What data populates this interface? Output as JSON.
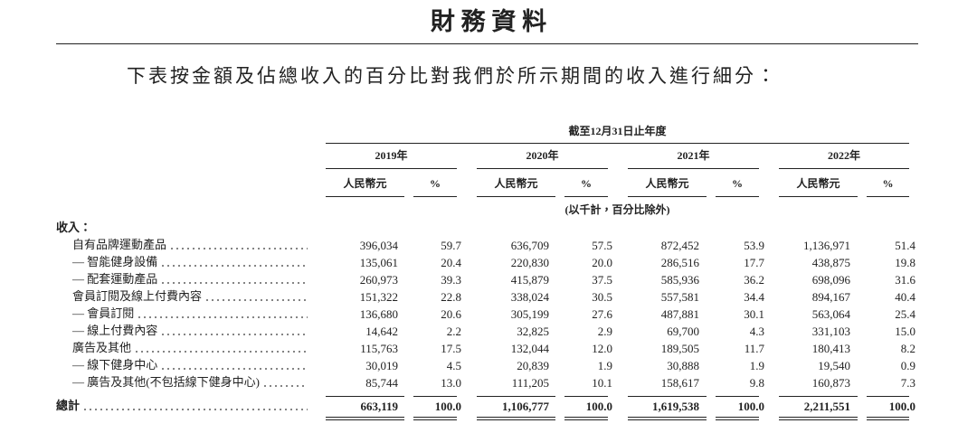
{
  "header": {
    "title": "財 務 資 料",
    "subtitle": "下表按金額及佔總收入的百分比對我們於所示期間的收入進行細分："
  },
  "table": {
    "period": "截至12月31日止年度",
    "years": [
      "2019年",
      "2020年",
      "2021年",
      "2022年"
    ],
    "subheaders": [
      "人民幣元",
      "%"
    ],
    "unit_note": "(以千計，百分比除外)",
    "section": "收入：",
    "rows": [
      {
        "label": "自有品牌運動產品",
        "values": [
          "396,034",
          "59.7",
          "636,709",
          "57.5",
          "872,452",
          "53.9",
          "1,136,971",
          "51.4"
        ]
      },
      {
        "label": "— 智能健身設備",
        "values": [
          "135,061",
          "20.4",
          "220,830",
          "20.0",
          "286,516",
          "17.7",
          "438,875",
          "19.8"
        ]
      },
      {
        "label": "— 配套運動產品",
        "values": [
          "260,973",
          "39.3",
          "415,879",
          "37.5",
          "585,936",
          "36.2",
          "698,096",
          "31.6"
        ]
      },
      {
        "label": "會員訂閱及線上付費內容",
        "values": [
          "151,322",
          "22.8",
          "338,024",
          "30.5",
          "557,581",
          "34.4",
          "894,167",
          "40.4"
        ]
      },
      {
        "label": "— 會員訂閱",
        "values": [
          "136,680",
          "20.6",
          "305,199",
          "27.6",
          "487,881",
          "30.1",
          "563,064",
          "25.4"
        ]
      },
      {
        "label": "— 線上付費內容",
        "values": [
          "14,642",
          "2.2",
          "32,825",
          "2.9",
          "69,700",
          "4.3",
          "331,103",
          "15.0"
        ]
      },
      {
        "label": "廣告及其他",
        "values": [
          "115,763",
          "17.5",
          "132,044",
          "12.0",
          "189,505",
          "11.7",
          "180,413",
          "8.2"
        ]
      },
      {
        "label": "— 線下健身中心",
        "values": [
          "30,019",
          "4.5",
          "20,839",
          "1.9",
          "30,888",
          "1.9",
          "19,540",
          "0.9"
        ]
      },
      {
        "label": "— 廣告及其他(不包括線下健身中心)",
        "values": [
          "85,744",
          "13.0",
          "111,205",
          "10.1",
          "158,617",
          "9.8",
          "160,873",
          "7.3"
        ]
      }
    ],
    "total": {
      "label": "總計",
      "values": [
        "663,119",
        "100.0",
        "1,106,777",
        "100.0",
        "1,619,538",
        "100.0",
        "2,211,551",
        "100.0"
      ]
    }
  }
}
